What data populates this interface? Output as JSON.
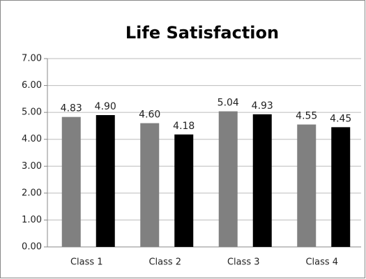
{
  "chart_data": {
    "type": "bar",
    "title": "Life Satisfaction",
    "categories": [
      "Class 1",
      "Class 2",
      "Class 3",
      "Class 4"
    ],
    "series": [
      {
        "color": "#808080",
        "values": [
          4.83,
          4.6,
          5.04,
          4.55
        ],
        "value_labels": [
          "4.83",
          "4.60",
          "5.04",
          "4.55"
        ]
      },
      {
        "color": "#000000",
        "values": [
          4.9,
          4.18,
          4.93,
          4.45
        ],
        "value_labels": [
          "4.90",
          "4.18",
          "4.93",
          "4.45"
        ]
      }
    ],
    "ylim": [
      0,
      7
    ],
    "yticks": [
      {
        "value": 0,
        "label": "0.00"
      },
      {
        "value": 1,
        "label": "1.00"
      },
      {
        "value": 2,
        "label": "2.00"
      },
      {
        "value": 3,
        "label": "3.00"
      },
      {
        "value": 4,
        "label": "4.00"
      },
      {
        "value": 5,
        "label": "5.00"
      },
      {
        "value": 6,
        "label": "6.00"
      },
      {
        "value": 7,
        "label": "7.00"
      }
    ],
    "grid": true
  }
}
